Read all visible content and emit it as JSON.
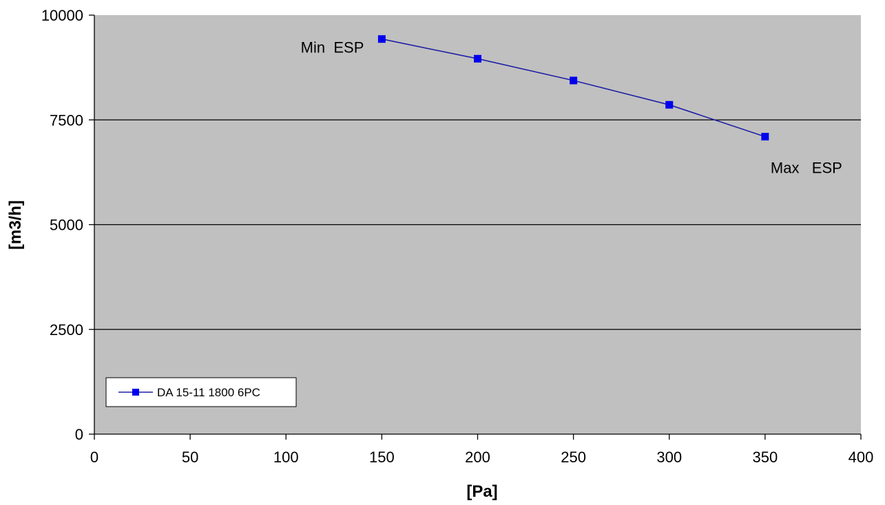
{
  "chart_data": {
    "type": "line",
    "title": "",
    "xlabel": "[Pa]",
    "ylabel": "[m3/h]",
    "xlim": [
      0,
      400
    ],
    "ylim": [
      0,
      10000
    ],
    "x_ticks": [
      0,
      50,
      100,
      150,
      200,
      250,
      300,
      350,
      400
    ],
    "y_ticks": [
      0,
      2500,
      5000,
      7500,
      10000
    ],
    "grid": "horizontal major gridlines",
    "plot_background": "#c0c0c0",
    "legend_position": "bottom-left inside plot",
    "series": [
      {
        "name": "DA 15-11 1800 6PC",
        "color": "#1f1fa6",
        "marker_color": "#0000ee",
        "marker": "square",
        "x": [
          150,
          200,
          250,
          300,
          350
        ],
        "y": [
          9430,
          8960,
          8440,
          7860,
          7100
        ]
      }
    ],
    "annotations": [
      {
        "text": "Min  ESP",
        "x": 150,
        "y": 9430,
        "anchor": "left-of-point"
      },
      {
        "text": "Max   ESP",
        "x": 350,
        "y": 7100,
        "anchor": "below-point"
      }
    ]
  }
}
